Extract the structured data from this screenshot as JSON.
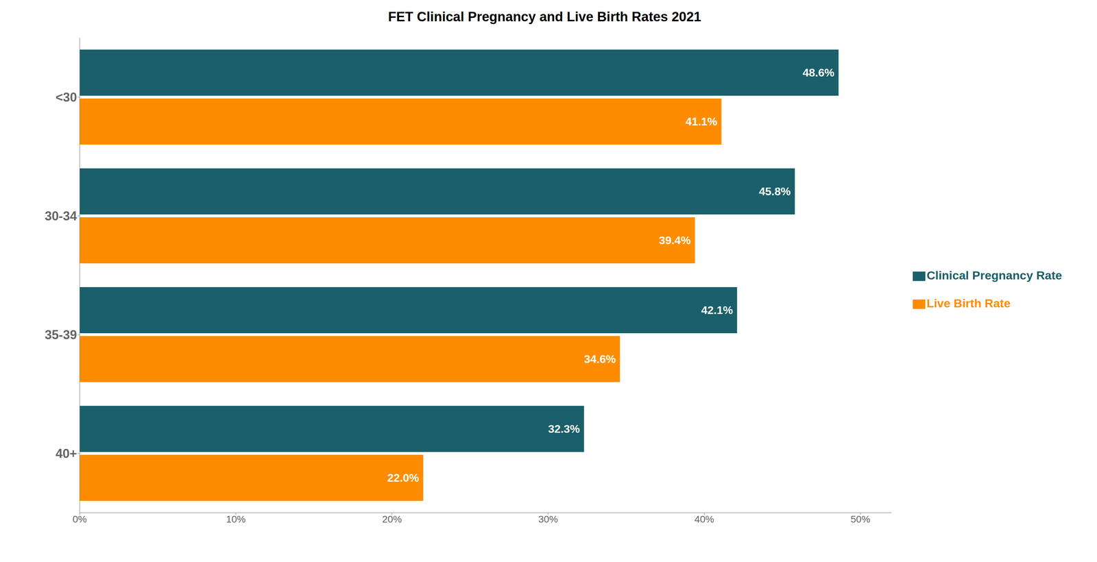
{
  "chart_data": {
    "type": "bar",
    "orientation": "horizontal",
    "title": "FET Clinical Pregnancy and Live Birth Rates 2021",
    "categories": [
      "40+",
      "35-39",
      "30-34",
      "<30"
    ],
    "series": [
      {
        "name": "Clinical Pregnancy Rate",
        "color": "#1a5f6a",
        "values": [
          32.3,
          42.1,
          45.8,
          48.6
        ],
        "value_labels": [
          "32.3%",
          "42.1%",
          "45.8%",
          "48.6%"
        ]
      },
      {
        "name": "Live Birth Rate",
        "color": "#FF8C00",
        "values": [
          22.0,
          34.6,
          39.4,
          41.1
        ],
        "value_labels": [
          "22.0%",
          "34.6%",
          "39.4%",
          "41.1%"
        ]
      }
    ],
    "xlim": [
      0,
      52
    ],
    "xticks": [
      {
        "value": 0,
        "label": "0%"
      },
      {
        "value": 10,
        "label": "10%"
      },
      {
        "value": 20,
        "label": "20%"
      },
      {
        "value": 30,
        "label": "30%"
      },
      {
        "value": 40,
        "label": "40%"
      },
      {
        "value": 50,
        "label": "50%"
      }
    ],
    "data_labels": true,
    "legend": "right",
    "grid": false
  }
}
